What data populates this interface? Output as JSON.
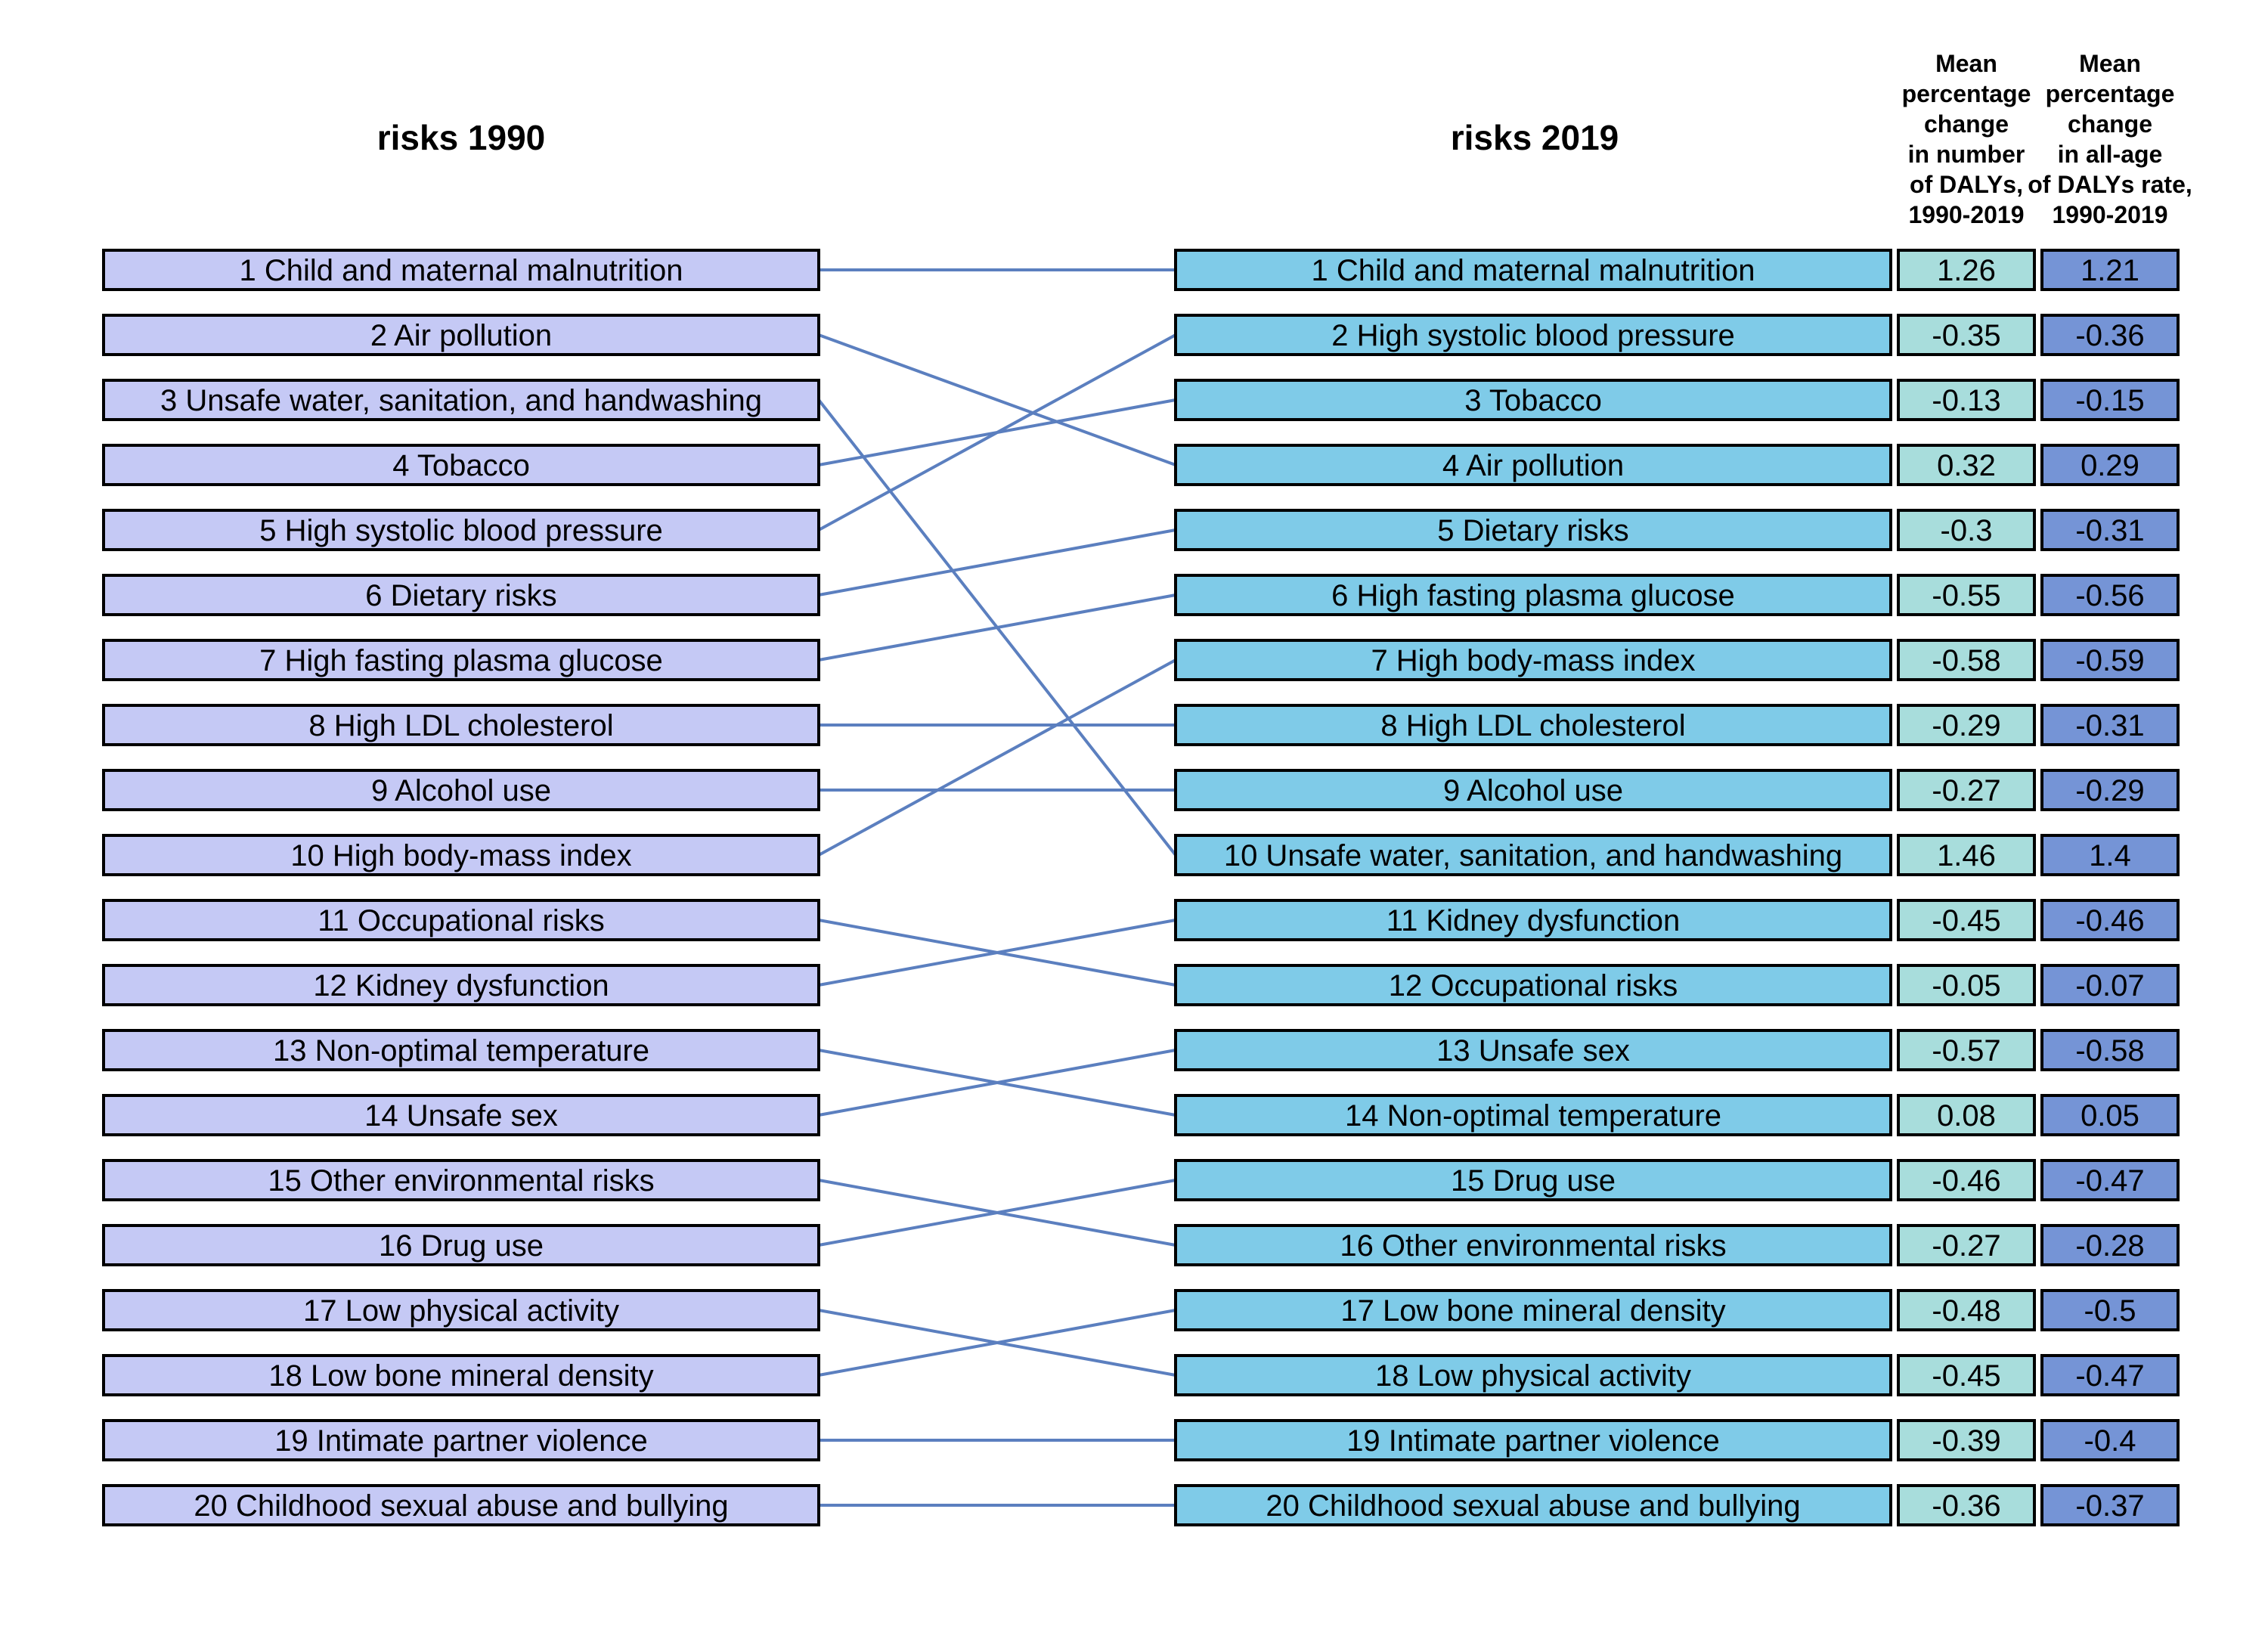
{
  "headers": {
    "left": "risks 1990",
    "right": "risks 2019",
    "col_number": [
      "Mean",
      "percentage",
      "change",
      "in number",
      "of DALYs,",
      "1990-2019"
    ],
    "col_rate": [
      "Mean",
      "percentage",
      "change",
      "in all-age",
      "of DALYs rate,",
      "1990-2019"
    ]
  },
  "colors": {
    "left_box": "#C5C9F5",
    "right_box": "#7FCBE8",
    "number_box": "#A8DDDC",
    "rate_box": "#7594D6",
    "connector": "#5B7FBF"
  },
  "risks_1990": [
    "1 Child and maternal malnutrition",
    "2 Air pollution",
    "3 Unsafe water, sanitation, and handwashing",
    "4 Tobacco",
    "5 High systolic blood pressure",
    "6 Dietary risks",
    "7 High fasting plasma glucose",
    "8 High LDL cholesterol",
    "9 Alcohol use",
    "10 High body-mass index",
    "11 Occupational risks",
    "12 Kidney dysfunction",
    "13 Non-optimal temperature",
    "14 Unsafe sex",
    "15 Other environmental risks",
    "16 Drug use",
    "17 Low physical activity",
    "18 Low bone mineral density",
    "19 Intimate partner violence",
    "20 Childhood sexual abuse and bullying"
  ],
  "risks_2019": [
    "1 Child and maternal malnutrition",
    "2 High systolic blood pressure",
    "3 Tobacco",
    "4 Air pollution",
    "5 Dietary risks",
    "6 High fasting plasma glucose",
    "7 High body-mass index",
    "8 High LDL cholesterol",
    "9 Alcohol use",
    "10 Unsafe water, sanitation, and handwashing",
    "11 Kidney dysfunction",
    "12 Occupational risks",
    "13 Unsafe sex",
    "14 Non-optimal temperature",
    "15 Drug use",
    "16 Other environmental risks",
    "17 Low bone mineral density",
    "18 Low physical activity",
    "19 Intimate partner violence",
    "20 Childhood sexual abuse and bullying"
  ],
  "change_number": [
    "1.26",
    "-0.35",
    "-0.13",
    "0.32",
    "-0.3",
    "-0.55",
    "-0.58",
    "-0.29",
    "-0.27",
    "1.46",
    "-0.45",
    "-0.05",
    "-0.57",
    "0.08",
    "-0.46",
    "-0.27",
    "-0.48",
    "-0.45",
    "-0.39",
    "-0.36"
  ],
  "change_rate": [
    "1.21",
    "-0.36",
    "-0.15",
    "0.29",
    "-0.31",
    "-0.56",
    "-0.59",
    "-0.31",
    "-0.29",
    "1.4",
    "-0.46",
    "-0.07",
    "-0.58",
    "0.05",
    "-0.47",
    "-0.28",
    "-0.5",
    "-0.47",
    "-0.4",
    "-0.37"
  ],
  "connections": [
    {
      "from_rank": 1,
      "to_rank": 1
    },
    {
      "from_rank": 2,
      "to_rank": 4
    },
    {
      "from_rank": 3,
      "to_rank": 10
    },
    {
      "from_rank": 4,
      "to_rank": 3
    },
    {
      "from_rank": 5,
      "to_rank": 2
    },
    {
      "from_rank": 6,
      "to_rank": 5
    },
    {
      "from_rank": 7,
      "to_rank": 6
    },
    {
      "from_rank": 8,
      "to_rank": 8
    },
    {
      "from_rank": 9,
      "to_rank": 9
    },
    {
      "from_rank": 10,
      "to_rank": 7
    },
    {
      "from_rank": 11,
      "to_rank": 12
    },
    {
      "from_rank": 12,
      "to_rank": 11
    },
    {
      "from_rank": 13,
      "to_rank": 14
    },
    {
      "from_rank": 14,
      "to_rank": 13
    },
    {
      "from_rank": 15,
      "to_rank": 16
    },
    {
      "from_rank": 16,
      "to_rank": 15
    },
    {
      "from_rank": 17,
      "to_rank": 18
    },
    {
      "from_rank": 18,
      "to_rank": 17
    },
    {
      "from_rank": 19,
      "to_rank": 19
    },
    {
      "from_rank": 20,
      "to_rank": 20
    }
  ]
}
